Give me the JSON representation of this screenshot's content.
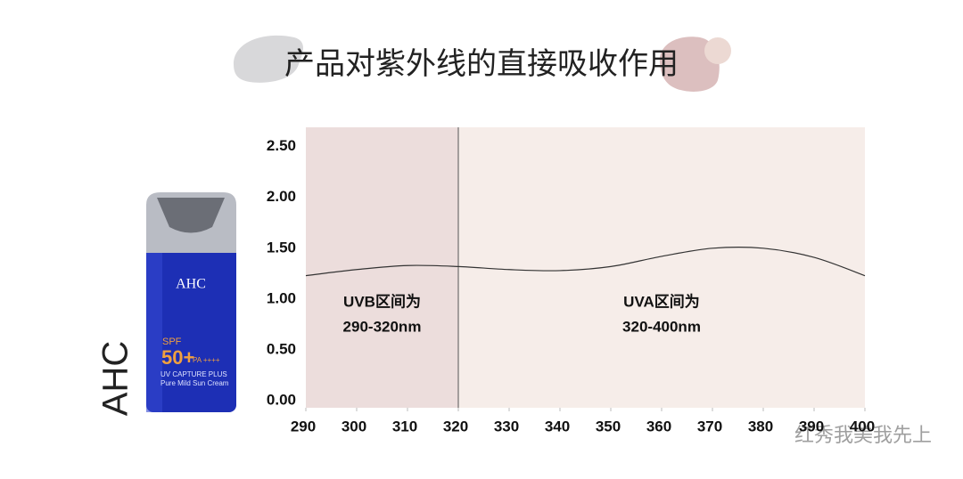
{
  "chart_data": {
    "type": "line",
    "title": "产品对紫外线的直接吸收作用",
    "x": [
      290,
      300,
      310,
      320,
      330,
      340,
      350,
      360,
      370,
      380,
      390,
      400
    ],
    "series": [
      {
        "color": "#333333",
        "values": [
          1.23,
          1.29,
          1.33,
          1.32,
          1.29,
          1.28,
          1.32,
          1.42,
          1.5,
          1.5,
          1.41,
          1.23
        ]
      }
    ],
    "xlim": [
      290,
      400
    ],
    "xticks": [
      290,
      300,
      310,
      320,
      330,
      340,
      350,
      360,
      370,
      380,
      390,
      400
    ],
    "ylim": [
      -0.07,
      2.69
    ],
    "yticks": [
      {
        "value": 0,
        "label": "0.00"
      },
      {
        "value": 0.5,
        "label": "0.50"
      },
      {
        "value": 1,
        "label": "1.00"
      },
      {
        "value": 1.5,
        "label": "1.50"
      },
      {
        "value": 2,
        "label": "2.00"
      },
      {
        "value": 2.5,
        "label": "2.50"
      }
    ],
    "grid": false,
    "regions": [
      {
        "from": 290,
        "to": 320,
        "color": "#ecdddc",
        "label": [
          "UVB区间为",
          "290-320nm"
        ]
      },
      {
        "from": 320,
        "to": 400,
        "color": "#f6ede9",
        "label": [
          "UVA区间为",
          "320-400nm"
        ]
      }
    ]
  },
  "side_label": "AHC",
  "product": {
    "brand": "AHC",
    "spf": "SPF",
    "spf_value": "50+",
    "pa": "PA ++++",
    "line1": "UV CAPTURE PLUS",
    "line2": "Pure Mild Sun Cream"
  },
  "watermark": "红秀我美我先上"
}
